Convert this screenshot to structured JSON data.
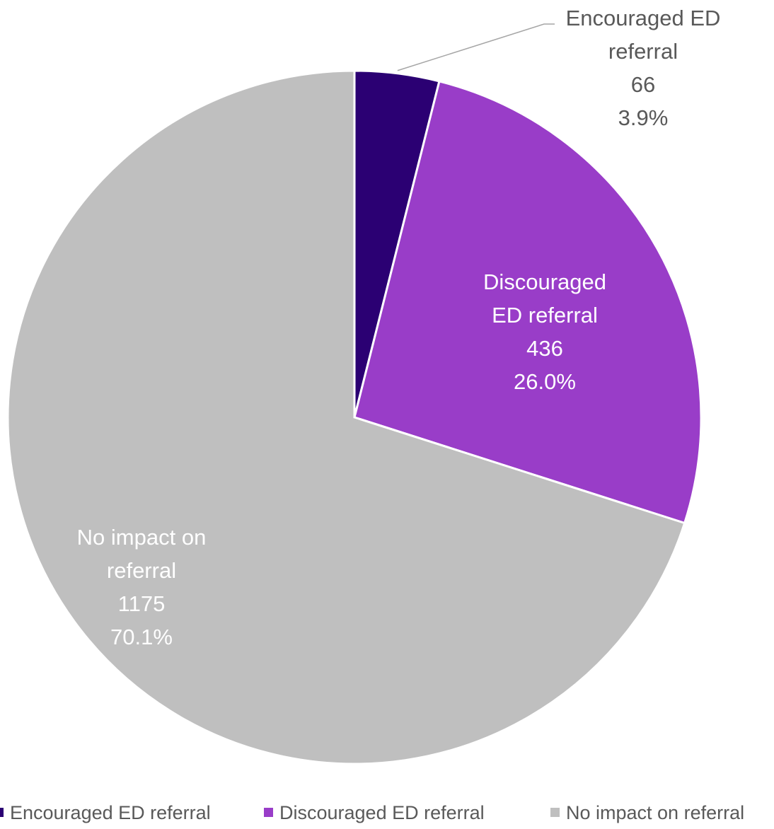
{
  "chart_data": {
    "type": "pie",
    "title": "",
    "start_angle_deg": 0,
    "direction": "clockwise",
    "slices": [
      {
        "name": "Encouraged ED referral",
        "label_lines": [
          "Encouraged ED",
          "referral"
        ],
        "count": "66",
        "percent": "3.9%",
        "value": 66,
        "color": "#2b0073",
        "label_color": "#595959"
      },
      {
        "name": "Discouraged ED referral",
        "label_lines": [
          "Discouraged",
          "ED referral"
        ],
        "count": "436",
        "percent": "26.0%",
        "value": 436,
        "color": "#993dc8",
        "label_color": "#ffffff"
      },
      {
        "name": "No impact on referral",
        "label_lines": [
          "No impact on",
          "referral"
        ],
        "count": "1175",
        "percent": "70.1%",
        "value": 1175,
        "color": "#bfbfbf",
        "label_color": "#ffffff"
      }
    ],
    "legend": {
      "position": "bottom",
      "items": [
        "Encouraged ED referral",
        "Discouraged ED referral",
        "No impact on referral"
      ]
    }
  }
}
